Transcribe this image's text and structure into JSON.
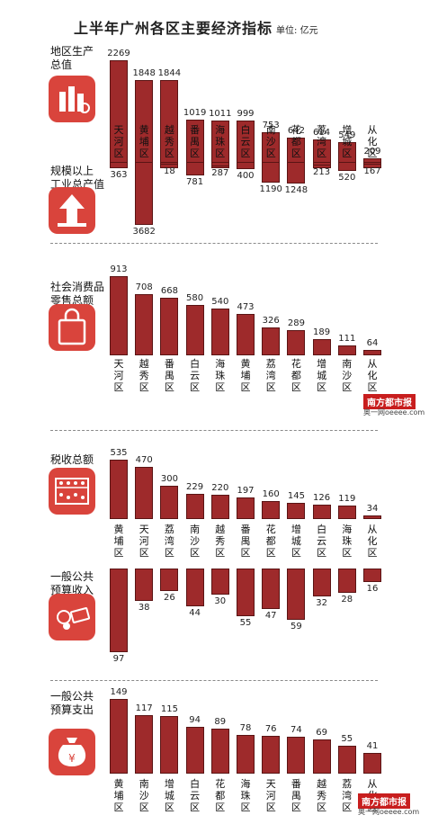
{
  "title": "上半年广州各区主要经济指标",
  "unit": "单位: 亿元",
  "watermark": "南方都市报",
  "watermark_sub": "奥一网oeeee.com",
  "colors": {
    "bar": "#9e2a2b",
    "icon": "#d9443c"
  },
  "chart_data": [
    {
      "type": "bar",
      "title": "地区生产总值",
      "icon": "city-chart-icon",
      "categories": [
        "天河区",
        "黄埔区",
        "越秀区",
        "番禺区",
        "海珠区",
        "白云区",
        "南沙区",
        "花都区",
        "荔湾区",
        "增城区",
        "从化区"
      ],
      "values": [
        2269,
        1848,
        1844,
        1019,
        1011,
        999,
        753,
        642,
        614,
        549,
        209
      ],
      "value_labels": [
        "2269",
        "1848",
        "1844",
        "1019",
        "1011",
        "999",
        "753",
        "642",
        "614",
        "549",
        "209"
      ]
    },
    {
      "type": "bar",
      "title": "规模以上工业总产值",
      "icon": "factory-arrow-icon",
      "orientation": "down",
      "categories": [
        "天河区",
        "黄埔区",
        "越秀区",
        "番禺区",
        "海珠区",
        "白云区",
        "南沙区",
        "花都区",
        "荔湾区",
        "增城区",
        "从化区"
      ],
      "values": [
        363,
        3682,
        18,
        781,
        287,
        400,
        1190,
        1248,
        213,
        520,
        167
      ],
      "value_labels": [
        "363",
        "3682",
        "18",
        "781",
        "287",
        "400",
        "1190",
        "1248",
        "213",
        "520",
        "167"
      ]
    },
    {
      "type": "bar",
      "title": "社会消费品零售总额",
      "icon": "shopping-bag-icon",
      "categories": [
        "天河区",
        "越秀区",
        "番禺区",
        "白云区",
        "海珠区",
        "黄埔区",
        "荔湾区",
        "花都区",
        "增城区",
        "南沙区",
        "从化区"
      ],
      "values": [
        913,
        708,
        668,
        580,
        540,
        473,
        326,
        289,
        189,
        111,
        64
      ],
      "value_labels": [
        "913",
        "708",
        "668",
        "580",
        "540",
        "473",
        "326",
        "289",
        "189",
        "111",
        "64"
      ]
    },
    {
      "type": "bar",
      "title": "税收总额",
      "icon": "abacus-icon",
      "categories": [
        "黄埔区",
        "天河区",
        "荔湾区",
        "南沙区",
        "越秀区",
        "番禺区",
        "花都区",
        "增城区",
        "白云区",
        "海珠区",
        "从化区"
      ],
      "values": [
        535,
        470,
        300,
        229,
        220,
        197,
        160,
        145,
        126,
        119,
        34
      ],
      "value_labels": [
        "535",
        "470",
        "300",
        "229",
        "220",
        "197",
        "160",
        "145",
        "126",
        "119",
        "34"
      ]
    },
    {
      "type": "bar",
      "title": "一般公共预算收入",
      "icon": "coins-cash-icon",
      "orientation": "down",
      "categories": [
        "黄埔区",
        "天河区",
        "荔湾区",
        "南沙区",
        "越秀区",
        "番禺区",
        "花都区",
        "增城区",
        "白云区",
        "海珠区",
        "从化区"
      ],
      "values": [
        97,
        38,
        26,
        44,
        30,
        55,
        47,
        59,
        32,
        28,
        16
      ],
      "value_labels": [
        "97",
        "38",
        "26",
        "44",
        "30",
        "55",
        "47",
        "59",
        "32",
        "28",
        "16"
      ]
    },
    {
      "type": "bar",
      "title": "一般公共预算支出",
      "icon": "money-bag-icon",
      "categories": [
        "黄埔区",
        "南沙区",
        "增城区",
        "白云区",
        "花都区",
        "海珠区",
        "天河区",
        "番禺区",
        "越秀区",
        "荔湾区",
        "从化区"
      ],
      "values": [
        149,
        117,
        115,
        94,
        89,
        78,
        76,
        74,
        69,
        55,
        41
      ],
      "value_labels": [
        "149",
        "117",
        "115",
        "94",
        "89",
        "78",
        "76",
        "74",
        "69",
        "55",
        "41"
      ]
    }
  ]
}
